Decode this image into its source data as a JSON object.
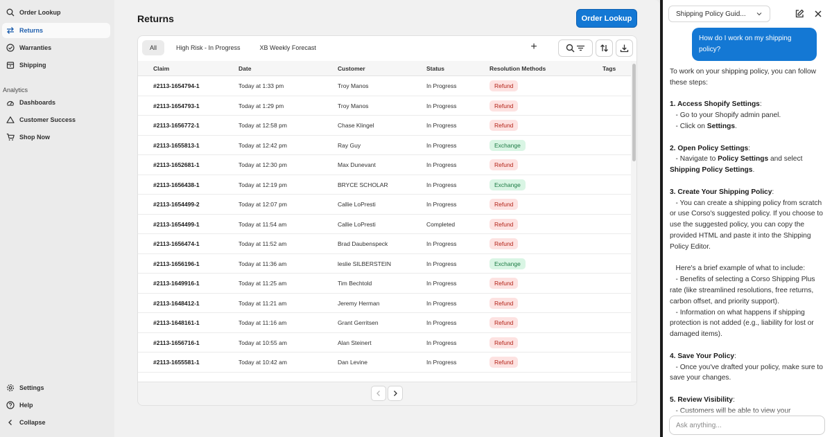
{
  "sidebar": {
    "top_items": [
      {
        "label": "Order Lookup",
        "icon": "search-icon"
      },
      {
        "label": "Returns",
        "icon": "swap-arrows-icon",
        "active": true
      },
      {
        "label": "Warranties",
        "icon": "check-circle-icon"
      },
      {
        "label": "Shipping",
        "icon": "box-icon"
      }
    ],
    "section_label": "Analytics",
    "analytics_items": [
      {
        "label": "Dashboards",
        "icon": "dashboard-gauge-icon"
      },
      {
        "label": "Customer Success",
        "icon": "triangle-icon"
      },
      {
        "label": "Shop Now",
        "icon": "cart-icon"
      }
    ],
    "bottom_items": [
      {
        "label": "Settings",
        "icon": "gear-icon"
      },
      {
        "label": "Help",
        "icon": "help-circle-icon"
      },
      {
        "label": "Collapse",
        "icon": "chevron-left-icon"
      }
    ]
  },
  "main": {
    "title": "Returns",
    "primary_button": "Order Lookup",
    "tabs": [
      {
        "label": "All",
        "active": true
      },
      {
        "label": "High Risk - In Progress"
      },
      {
        "label": "XB Weekly Forecast"
      }
    ],
    "add_label": "+",
    "columns": [
      "Claim",
      "Date",
      "Customer",
      "Status",
      "Resolution Methods",
      "Tags"
    ],
    "rows": [
      {
        "claim": "#2113-1654794-1",
        "date": "Today at 1:33 pm",
        "customer": "Troy Manos",
        "status": "In Progress",
        "resolution": "Refund"
      },
      {
        "claim": "#2113-1654793-1",
        "date": "Today at 1:29 pm",
        "customer": "Troy Manos",
        "status": "In Progress",
        "resolution": "Refund"
      },
      {
        "claim": "#2113-1656772-1",
        "date": "Today at 12:58 pm",
        "customer": "Chase Klingel",
        "status": "In Progress",
        "resolution": "Refund"
      },
      {
        "claim": "#2113-1655813-1",
        "date": "Today at 12:42 pm",
        "customer": "Ray Guy",
        "status": "In Progress",
        "resolution": "Exchange"
      },
      {
        "claim": "#2113-1652681-1",
        "date": "Today at 12:30 pm",
        "customer": "Max Dunevant",
        "status": "In Progress",
        "resolution": "Refund"
      },
      {
        "claim": "#2113-1656438-1",
        "date": "Today at 12:19 pm",
        "customer": "BRYCE SCHOLAR",
        "status": "In Progress",
        "resolution": "Exchange"
      },
      {
        "claim": "#2113-1654499-2",
        "date": "Today at 12:07 pm",
        "customer": "Callie LoPresti",
        "status": "In Progress",
        "resolution": "Refund"
      },
      {
        "claim": "#2113-1654499-1",
        "date": "Today at 11:54 am",
        "customer": "Callie LoPresti",
        "status": "Completed",
        "resolution": "Refund"
      },
      {
        "claim": "#2113-1656474-1",
        "date": "Today at 11:52 am",
        "customer": "Brad Daubenspeck",
        "status": "In Progress",
        "resolution": "Refund"
      },
      {
        "claim": "#2113-1656196-1",
        "date": "Today at 11:36 am",
        "customer": "leslie SILBERSTEIN",
        "status": "In Progress",
        "resolution": "Exchange"
      },
      {
        "claim": "#2113-1649916-1",
        "date": "Today at 11:25 am",
        "customer": "Tim Bechtold",
        "status": "In Progress",
        "resolution": "Refund"
      },
      {
        "claim": "#2113-1648412-1",
        "date": "Today at 11:21 am",
        "customer": "Jeremy Herman",
        "status": "In Progress",
        "resolution": "Refund"
      },
      {
        "claim": "#2113-1648161-1",
        "date": "Today at 11:16 am",
        "customer": "Grant Gerritsen",
        "status": "In Progress",
        "resolution": "Refund"
      },
      {
        "claim": "#2113-1656716-1",
        "date": "Today at 10:55 am",
        "customer": "Alan Steinert",
        "status": "In Progress",
        "resolution": "Refund"
      },
      {
        "claim": "#2113-1655581-1",
        "date": "Today at 10:42 am",
        "customer": "Dan Levine",
        "status": "In Progress",
        "resolution": "Refund"
      }
    ]
  },
  "chat": {
    "selector": "Shipping Policy Guid...",
    "user_message": "How do I work on my shipping policy?",
    "input_placeholder": "Ask anything...",
    "reply": {
      "intro": "To work on your shipping policy, you can follow these steps:",
      "s1_title": "1. Access Shopify Settings",
      "s1_l1": "- Go to your Shopify admin panel.",
      "s1_l2_pre": "- Click on ",
      "s1_l2_bold": "Settings",
      "s2_title": "2. Open Policy Settings",
      "s2_pre": "- Navigate to ",
      "s2_bold1": "Policy Settings",
      "s2_mid": " and select ",
      "s2_bold2": "Shipping Policy Settings",
      "s3_title": "3. Create Your Shipping Policy",
      "s3_text": "- You can create a shipping policy from scratch or use Corso's suggested policy. If you choose to use the suggested policy, you can copy the provided HTML and paste it into the Shipping Policy Editor.",
      "example_intro": "Here's a brief example of what to include:",
      "example_b1": "- Benefits of selecting a Corso Shipping Plus rate (like streamlined resolutions, free returns, carbon offset, and priority support).",
      "example_b2": "- Information on what happens if shipping protection is not added (e.g., liability for lost or damaged items).",
      "s4_title": "4. Save Your Policy",
      "s4_text": "- Once you've drafted your policy, make sure to save your changes.",
      "s5_title": "5. Review Visibility",
      "s5_text": "- Customers will be able to view your"
    }
  },
  "colors": {
    "accent": "#1478d4",
    "refund_bg": "#fde2e1",
    "refund_text": "#b42318",
    "exchange_bg": "#d9f5e4",
    "exchange_text": "#1b7a43"
  }
}
